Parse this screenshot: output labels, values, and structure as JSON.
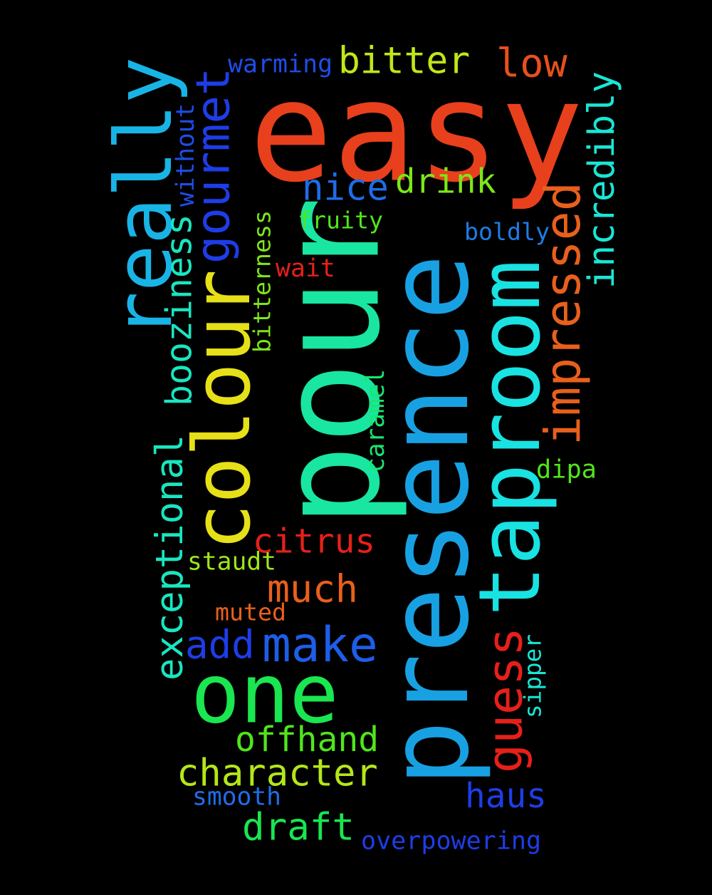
{
  "words": [
    {
      "id": "easy",
      "text": "easy",
      "color": "#e8401c",
      "rotated": false
    },
    {
      "id": "presence",
      "text": "presence",
      "color": "#18a1e2",
      "rotated": true
    },
    {
      "id": "pour",
      "text": "pour",
      "color": "#19e6a0",
      "rotated": true
    },
    {
      "id": "colour",
      "text": "colour",
      "color": "#e6e019",
      "rotated": true
    },
    {
      "id": "taproom",
      "text": "taproom",
      "color": "#19e2e2",
      "rotated": true
    },
    {
      "id": "really",
      "text": "really",
      "color": "#19b4e6",
      "rotated": true
    },
    {
      "id": "one",
      "text": "one",
      "color": "#19e650",
      "rotated": false
    },
    {
      "id": "gourmet",
      "text": "gourmet",
      "color": "#1e3de8",
      "rotated": true
    },
    {
      "id": "impressed",
      "text": "impressed",
      "color": "#e8601c",
      "rotated": true
    },
    {
      "id": "guess",
      "text": "guess",
      "color": "#e62019",
      "rotated": true
    },
    {
      "id": "exceptional",
      "text": "exceptional",
      "color": "#19e6c0",
      "rotated": true
    },
    {
      "id": "booziness",
      "text": "booziness",
      "color": "#19e6c0",
      "rotated": true
    },
    {
      "id": "incredibly",
      "text": "incredibly",
      "color": "#19e6d4",
      "rotated": true
    },
    {
      "id": "make",
      "text": "make",
      "color": "#1e5de8",
      "rotated": false
    },
    {
      "id": "character",
      "text": "character",
      "color": "#b4e619",
      "rotated": false
    },
    {
      "id": "offhand",
      "text": "offhand",
      "color": "#50e619",
      "rotated": false
    },
    {
      "id": "draft",
      "text": "draft",
      "color": "#19e650",
      "rotated": false
    },
    {
      "id": "much",
      "text": "much",
      "color": "#e8601c",
      "rotated": false
    },
    {
      "id": "add",
      "text": "add",
      "color": "#1e3de8",
      "rotated": false
    },
    {
      "id": "citrus",
      "text": "citrus",
      "color": "#e62019",
      "rotated": false
    },
    {
      "id": "haus",
      "text": "haus",
      "color": "#1e3de8",
      "rotated": false
    },
    {
      "id": "nice",
      "text": "nice",
      "color": "#1e6de8",
      "rotated": false
    },
    {
      "id": "drink",
      "text": "drink",
      "color": "#7ee619",
      "rotated": false
    },
    {
      "id": "bitter",
      "text": "bitter",
      "color": "#c0e619",
      "rotated": false
    },
    {
      "id": "low",
      "text": "low",
      "color": "#e8501c",
      "rotated": false
    },
    {
      "id": "warming",
      "text": "warming",
      "color": "#1e4de8",
      "rotated": false
    },
    {
      "id": "without",
      "text": "without",
      "color": "#1e4de8",
      "rotated": true
    },
    {
      "id": "fruity",
      "text": "fruity",
      "color": "#50e619",
      "rotated": false
    },
    {
      "id": "boldly",
      "text": "boldly",
      "color": "#1e7de8",
      "rotated": false
    },
    {
      "id": "wait",
      "text": "wait",
      "color": "#e62019",
      "rotated": false
    },
    {
      "id": "bitterness",
      "text": "bitterness",
      "color": "#7ee619",
      "rotated": true
    },
    {
      "id": "caramel",
      "text": "caramel",
      "color": "#19e670",
      "rotated": true
    },
    {
      "id": "dipa",
      "text": "dipa",
      "color": "#50e619",
      "rotated": false
    },
    {
      "id": "staudt",
      "text": "staudt",
      "color": "#9ee619",
      "rotated": false
    },
    {
      "id": "muted",
      "text": "muted",
      "color": "#e8601c",
      "rotated": false
    },
    {
      "id": "sipper",
      "text": "sipper",
      "color": "#19e6d4",
      "rotated": true
    },
    {
      "id": "smooth",
      "text": "smooth",
      "color": "#1e6de8",
      "rotated": false
    },
    {
      "id": "overpowering",
      "text": "overpowering",
      "color": "#1e3de8",
      "rotated": false
    }
  ]
}
